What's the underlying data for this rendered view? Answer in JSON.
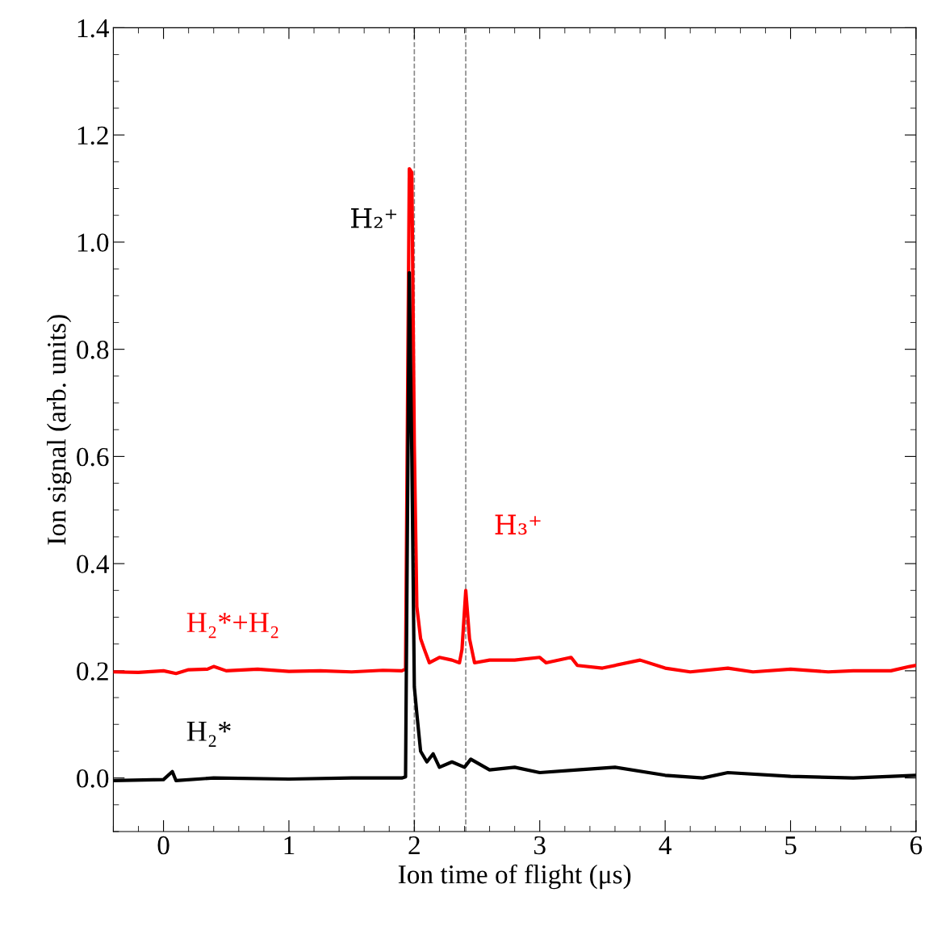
{
  "chart_data": {
    "type": "line",
    "xlabel": "Ion time of flight (μs)",
    "ylabel": "Ion signal (arb. units)",
    "xlim": [
      -0.4,
      6
    ],
    "xticks": [
      0,
      1,
      2,
      3,
      4,
      5,
      6
    ],
    "ylim": [
      -0.1,
      1.4
    ],
    "yticks": [
      {
        "value": 0.0,
        "label": "0.0"
      },
      0.2,
      0.4,
      0.6,
      0.8,
      {
        "value": 1.0,
        "label": "1.0"
      },
      1.2,
      1.4
    ],
    "grid": false,
    "marker": "none",
    "line_style": "solid",
    "series": [
      {
        "name": "H₂*+H₂",
        "color": "#ff0000",
        "x": [
          -0.4,
          -0.2,
          0,
          0.1,
          0.2,
          0.35,
          0.4,
          0.5,
          0.75,
          1.0,
          1.25,
          1.5,
          1.75,
          1.9,
          1.93,
          1.96,
          1.98,
          2.0,
          2.02,
          2.05,
          2.08,
          2.12,
          2.2,
          2.3,
          2.36,
          2.38,
          2.41,
          2.44,
          2.48,
          2.6,
          2.8,
          3.0,
          3.05,
          3.25,
          3.3,
          3.5,
          3.8,
          4.0,
          4.2,
          4.5,
          4.7,
          5.0,
          5.3,
          5.5,
          5.8,
          5.95,
          6.0
        ],
        "values": [
          0.198,
          0.197,
          0.2,
          0.195,
          0.202,
          0.203,
          0.208,
          0.2,
          0.203,
          0.199,
          0.2,
          0.198,
          0.201,
          0.2,
          0.203,
          1.137,
          1.13,
          0.62,
          0.32,
          0.26,
          0.24,
          0.215,
          0.225,
          0.22,
          0.215,
          0.24,
          0.35,
          0.26,
          0.215,
          0.22,
          0.22,
          0.225,
          0.215,
          0.225,
          0.21,
          0.205,
          0.22,
          0.205,
          0.198,
          0.205,
          0.198,
          0.203,
          0.198,
          0.2,
          0.2,
          0.208,
          0.21
        ]
      },
      {
        "name": "H₂*",
        "color": "#000000",
        "x": [
          -0.4,
          0,
          0.07,
          0.1,
          0.4,
          1.0,
          1.5,
          1.9,
          1.93,
          1.96,
          1.98,
          2.0,
          2.02,
          2.05,
          2.1,
          2.15,
          2.2,
          2.3,
          2.4,
          2.45,
          2.6,
          2.8,
          3.0,
          3.3,
          3.6,
          4.0,
          4.3,
          4.5,
          5.0,
          5.5,
          6.0
        ],
        "values": [
          -0.005,
          -0.003,
          0.012,
          -0.005,
          0.0,
          -0.002,
          0.0,
          0.0,
          0.002,
          0.943,
          0.6,
          0.17,
          0.12,
          0.05,
          0.03,
          0.045,
          0.02,
          0.03,
          0.02,
          0.035,
          0.015,
          0.02,
          0.01,
          0.015,
          0.02,
          0.005,
          0.0,
          0.01,
          0.003,
          0.0,
          0.005
        ]
      }
    ],
    "ref_lines": [
      {
        "axis": "x",
        "value": 2.0,
        "color": "#888888",
        "line_style": "dashed"
      },
      {
        "axis": "x",
        "value": 2.41,
        "color": "#888888",
        "line_style": "dashed"
      }
    ],
    "annotations": [
      {
        "text": "H₂⁺",
        "x": 1.96,
        "y": 0.943
      },
      {
        "text": "H₃⁺",
        "x": 2.41,
        "y": 0.35
      }
    ]
  }
}
